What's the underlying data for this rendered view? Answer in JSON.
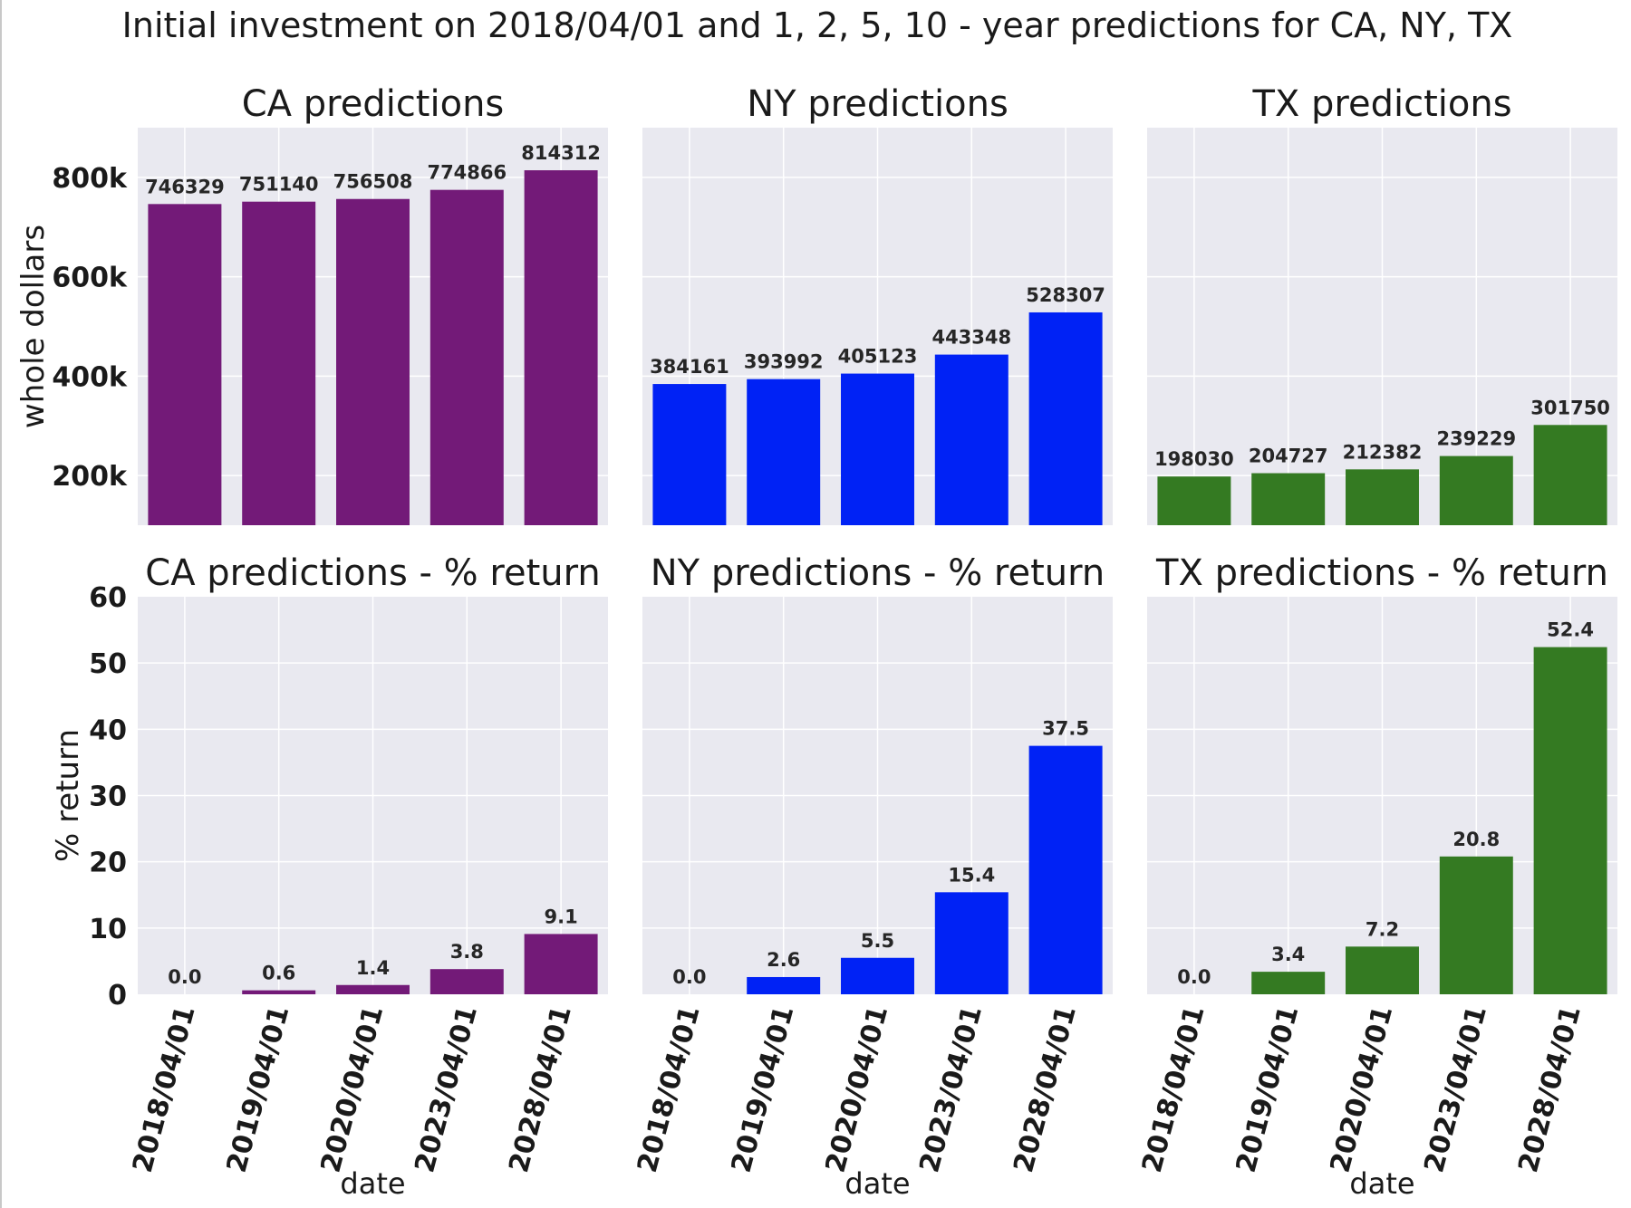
{
  "figure": {
    "title": "Initial investment on 2018/04/01 and 1, 2, 5, 10 - year predictions for CA, NY, TX"
  },
  "colors": {
    "CA": "#731a78",
    "NY": "#0022f5",
    "TX": "#347a22",
    "panel_bg": "#e9e9f0",
    "grid": "#ffffff"
  },
  "chart_data": [
    {
      "type": "bar",
      "title": "CA predictions",
      "state": "CA",
      "categories": [
        "2018/04/01",
        "2019/04/01",
        "2020/04/01",
        "2023/04/01",
        "2028/04/01"
      ],
      "values": [
        746329,
        751140,
        756508,
        774866,
        814312
      ],
      "value_labels": [
        "746329",
        "751140",
        "756508",
        "774866",
        "814312"
      ],
      "xlabel": "",
      "ylabel": "whole dollars",
      "ylim": [
        100000,
        900000
      ],
      "yticks": [
        200000,
        400000,
        600000,
        800000
      ],
      "yticklabels": [
        "200k",
        "400k",
        "600k",
        "800k"
      ],
      "grid": true
    },
    {
      "type": "bar",
      "title": "NY predictions",
      "state": "NY",
      "categories": [
        "2018/04/01",
        "2019/04/01",
        "2020/04/01",
        "2023/04/01",
        "2028/04/01"
      ],
      "values": [
        384161,
        393992,
        405123,
        443348,
        528307
      ],
      "value_labels": [
        "384161",
        "393992",
        "405123",
        "443348",
        "528307"
      ],
      "xlabel": "",
      "ylabel": "",
      "ylim": [
        100000,
        900000
      ],
      "grid": true
    },
    {
      "type": "bar",
      "title": "TX predictions",
      "state": "TX",
      "categories": [
        "2018/04/01",
        "2019/04/01",
        "2020/04/01",
        "2023/04/01",
        "2028/04/01"
      ],
      "values": [
        198030,
        204727,
        212382,
        239229,
        301750
      ],
      "value_labels": [
        "198030",
        "204727",
        "212382",
        "239229",
        "301750"
      ],
      "xlabel": "",
      "ylabel": "",
      "ylim": [
        100000,
        900000
      ],
      "grid": true
    },
    {
      "type": "bar",
      "title": "CA predictions - % return",
      "state": "CA",
      "categories": [
        "2018/04/01",
        "2019/04/01",
        "2020/04/01",
        "2023/04/01",
        "2028/04/01"
      ],
      "values": [
        0.0,
        0.6,
        1.4,
        3.8,
        9.1
      ],
      "value_labels": [
        "0.0",
        "0.6",
        "1.4",
        "3.8",
        "9.1"
      ],
      "xlabel": "date",
      "ylabel": "% return",
      "ylim": [
        0,
        60
      ],
      "yticks": [
        0,
        10,
        20,
        30,
        40,
        50,
        60
      ],
      "yticklabels": [
        "0",
        "10",
        "20",
        "30",
        "40",
        "50",
        "60"
      ],
      "grid": true
    },
    {
      "type": "bar",
      "title": "NY predictions - % return",
      "state": "NY",
      "categories": [
        "2018/04/01",
        "2019/04/01",
        "2020/04/01",
        "2023/04/01",
        "2028/04/01"
      ],
      "values": [
        0.0,
        2.6,
        5.5,
        15.4,
        37.5
      ],
      "value_labels": [
        "0.0",
        "2.6",
        "5.5",
        "15.4",
        "37.5"
      ],
      "xlabel": "date",
      "ylabel": "",
      "ylim": [
        0,
        60
      ],
      "grid": true
    },
    {
      "type": "bar",
      "title": "TX predictions - % return",
      "state": "TX",
      "categories": [
        "2018/04/01",
        "2019/04/01",
        "2020/04/01",
        "2023/04/01",
        "2028/04/01"
      ],
      "values": [
        0.0,
        3.4,
        7.2,
        20.8,
        52.4
      ],
      "value_labels": [
        "0.0",
        "3.4",
        "7.2",
        "20.8",
        "52.4"
      ],
      "xlabel": "date",
      "ylabel": "",
      "ylim": [
        0,
        60
      ],
      "grid": true
    }
  ]
}
